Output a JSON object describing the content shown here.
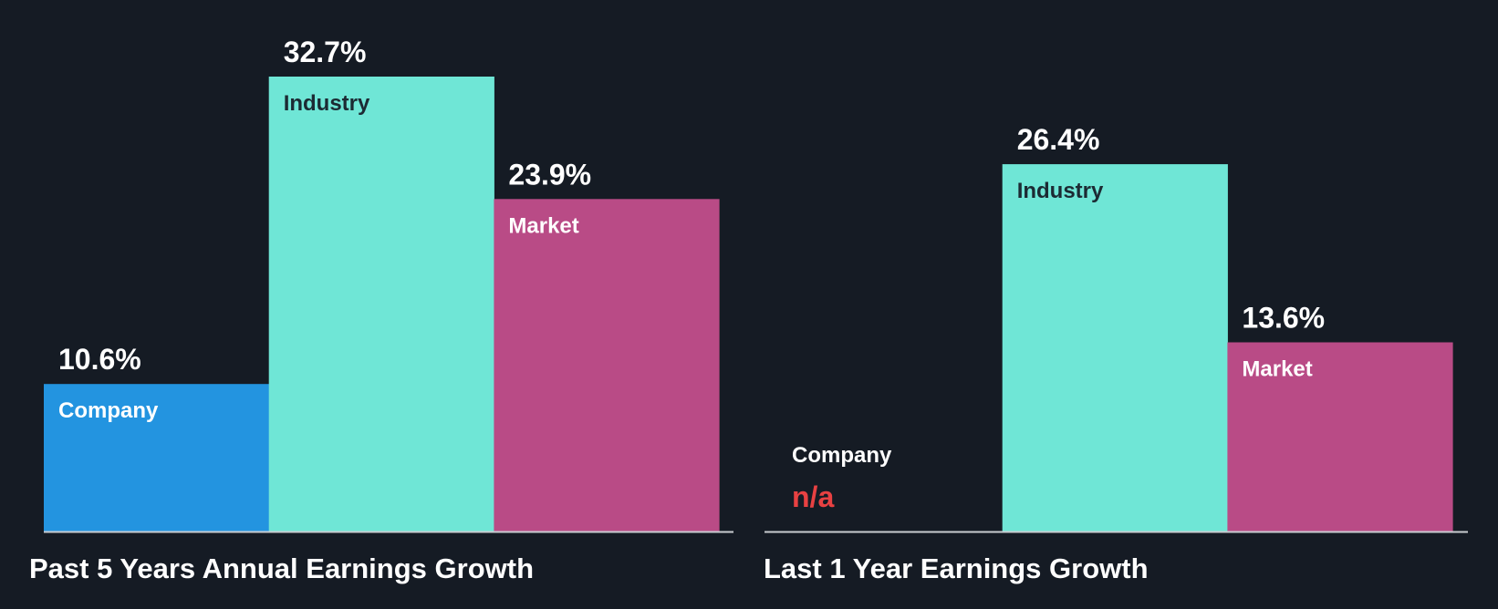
{
  "colors": {
    "background": "#151b24",
    "company": "#2394e0",
    "industry": "#6fe6d6",
    "market": "#b94b86",
    "baseline": "#c9ccd1",
    "na": "#e84142",
    "label_dark": "#1c2a33",
    "label_light": "#ffffff"
  },
  "chart_data": [
    {
      "type": "bar",
      "title": "Past 5 Years Annual Earnings Growth",
      "categories": [
        "Company",
        "Industry",
        "Market"
      ],
      "values": [
        10.6,
        32.7,
        23.9
      ],
      "value_labels": [
        "10.6%",
        "32.7%",
        "23.9%"
      ],
      "unit": "%",
      "ylim": [
        0,
        32.7
      ],
      "xlabel": "",
      "ylabel": ""
    },
    {
      "type": "bar",
      "title": "Last 1 Year Earnings Growth",
      "categories": [
        "Company",
        "Industry",
        "Market"
      ],
      "values": [
        null,
        26.4,
        13.6
      ],
      "value_labels": [
        "n/a",
        "26.4%",
        "13.6%"
      ],
      "unit": "%",
      "ylim": [
        0,
        32.7
      ],
      "xlabel": "",
      "ylabel": ""
    }
  ]
}
